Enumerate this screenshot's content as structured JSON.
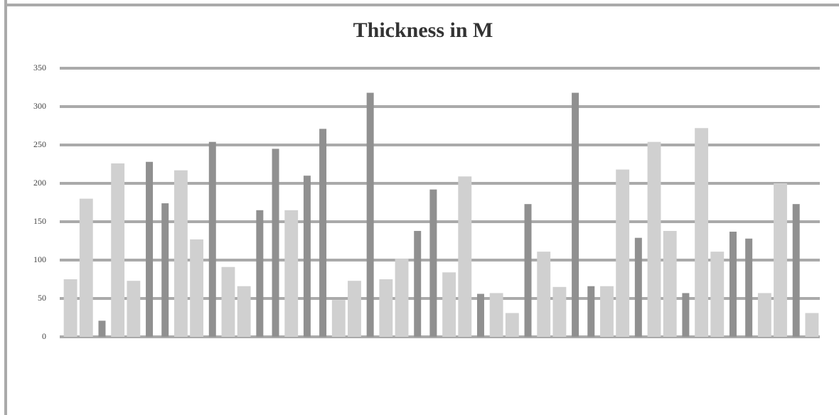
{
  "chart_data": {
    "type": "bar",
    "title": "Thickness in M",
    "values": [
      75,
      180,
      21,
      226,
      73,
      228,
      174,
      217,
      127,
      254,
      91,
      66,
      165,
      245,
      165,
      210,
      271,
      48,
      73,
      318,
      75,
      102,
      138,
      192,
      84,
      209,
      56,
      57,
      31,
      173,
      111,
      65,
      318,
      66,
      66,
      218,
      129,
      254,
      138,
      57,
      272,
      111,
      137,
      128,
      57,
      200,
      173,
      31
    ],
    "colors": [
      "#d0d0d0",
      "#d0d0d0",
      "#909090",
      "#d0d0d0",
      "#d0d0d0",
      "#909090",
      "#909090",
      "#d0d0d0",
      "#d0d0d0",
      "#909090",
      "#d0d0d0",
      "#d0d0d0",
      "#909090",
      "#909090",
      "#d0d0d0",
      "#909090",
      "#909090",
      "#d0d0d0",
      "#d0d0d0",
      "#909090",
      "#d0d0d0",
      "#d0d0d0",
      "#909090",
      "#909090",
      "#d0d0d0",
      "#d0d0d0",
      "#909090",
      "#d0d0d0",
      "#d0d0d0",
      "#909090",
      "#d0d0d0",
      "#d0d0d0",
      "#909090",
      "#909090",
      "#d0d0d0",
      "#d0d0d0",
      "#909090",
      "#d0d0d0",
      "#d0d0d0",
      "#909090",
      "#d0d0d0",
      "#d0d0d0",
      "#909090",
      "#909090",
      "#d0d0d0",
      "#d0d0d0",
      "#909090",
      "#d0d0d0"
    ],
    "ylim": [
      0,
      350
    ],
    "yticks": [
      0,
      50,
      100,
      150,
      200,
      250,
      300,
      350
    ],
    "grid": true
  }
}
